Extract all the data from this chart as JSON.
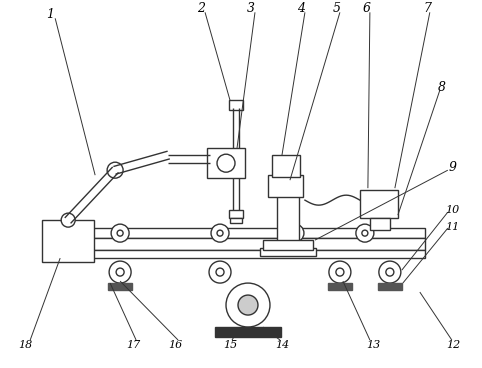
{
  "background_color": "#ffffff",
  "line_color": "#333333",
  "lw": 1.0,
  "fig_width": 4.82,
  "fig_height": 3.68,
  "dpi": 100
}
